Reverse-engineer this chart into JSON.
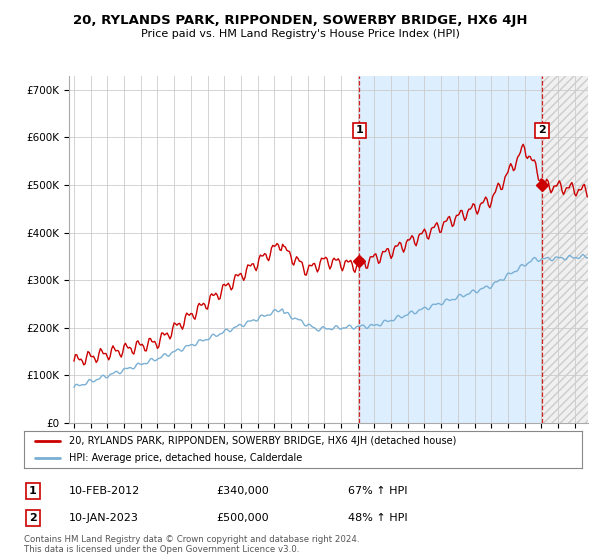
{
  "title": "20, RYLANDS PARK, RIPPONDEN, SOWERBY BRIDGE, HX6 4JH",
  "subtitle": "Price paid vs. HM Land Registry's House Price Index (HPI)",
  "ylabel_ticks": [
    "£0",
    "£100K",
    "£200K",
    "£300K",
    "£400K",
    "£500K",
    "£600K",
    "£700K"
  ],
  "ytick_vals": [
    0,
    100000,
    200000,
    300000,
    400000,
    500000,
    600000,
    700000
  ],
  "ylim": [
    0,
    730000
  ],
  "xlim_start": 1994.7,
  "xlim_end": 2025.8,
  "hpi_color": "#7ab0d4",
  "price_color": "#cc0000",
  "marker1_date": 2012.1,
  "marker1_price": 340000,
  "marker2_date": 2023.04,
  "marker2_price": 500000,
  "legend_label1": "20, RYLANDS PARK, RIPPONDEN, SOWERBY BRIDGE, HX6 4JH (detached house)",
  "legend_label2": "HPI: Average price, detached house, Calderdale",
  "annotation1_label": "1",
  "annotation1_text": "10-FEB-2012",
  "annotation1_price": "£340,000",
  "annotation1_hpi": "67% ↑ HPI",
  "annotation2_label": "2",
  "annotation2_text": "10-JAN-2023",
  "annotation2_price": "£500,000",
  "annotation2_hpi": "48% ↑ HPI",
  "footer": "Contains HM Land Registry data © Crown copyright and database right 2024.\nThis data is licensed under the Open Government Licence v3.0.",
  "background_color": "#ffffff",
  "grid_color": "#cccccc",
  "vline_color": "#cc0000",
  "highlight_color": "#ddeeff",
  "hatch_color": "#e8e8e8"
}
